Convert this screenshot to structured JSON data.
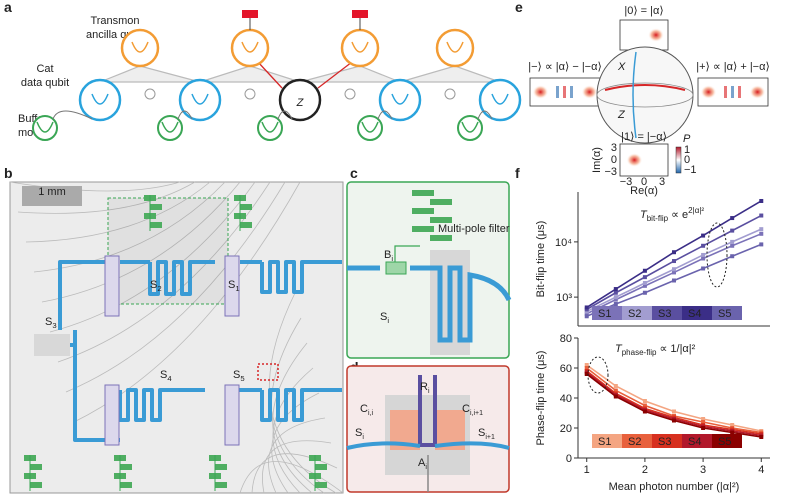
{
  "panels": {
    "a": {
      "label": "a",
      "transmon": [
        "Transmon",
        "ancilla qubit"
      ],
      "cat": [
        "Cat",
        "data qubit"
      ],
      "buffer": [
        "Buffer",
        "mode"
      ],
      "z": "Z"
    },
    "b": {
      "label": "b",
      "scale": "1 mm",
      "sites": [
        {
          "s": "S",
          "sub": "2"
        },
        {
          "s": "S",
          "sub": "1"
        },
        {
          "s": "S",
          "sub": "3"
        },
        {
          "s": "S",
          "sub": "4"
        },
        {
          "s": "S",
          "sub": "5"
        }
      ]
    },
    "c": {
      "label": "c",
      "filter": "Multi-pole filter",
      "b": {
        "s": "B",
        "sub": "i"
      },
      "s": {
        "s": "S",
        "sub": "i"
      }
    },
    "d": {
      "label": "d",
      "labels": [
        {
          "s": "R",
          "sub": "i"
        },
        {
          "s": "C",
          "sub": "i,i"
        },
        {
          "s": "C",
          "sub": "i,i+1"
        },
        {
          "s": "S",
          "sub": "i"
        },
        {
          "s": "A",
          "sub": "i"
        },
        {
          "s": "S",
          "sub": "i+1"
        }
      ]
    },
    "e": {
      "label": "e",
      "states": [
        "|0⟩ = |α⟩",
        "|−⟩ ∝ |α⟩ − |−α⟩",
        "|+⟩ ∝ |α⟩ + |−α⟩",
        "|1⟩ = |−α⟩"
      ],
      "axes": [
        "X",
        "Z"
      ],
      "ylabel": "Im(α)",
      "xlabel": "Re(α)",
      "yticks": [
        "3",
        "0",
        "−3"
      ],
      "xticks": [
        "−3",
        "0",
        "3"
      ],
      "colorbar_label": "P",
      "colorbar_ticks": [
        "1",
        "0",
        "−1"
      ]
    },
    "f": {
      "label": "f"
    }
  },
  "chart_data": [
    {
      "type": "line",
      "ylabel": "Bit-flip time (μs)",
      "x": [
        1,
        1.5,
        2,
        2.5,
        3,
        3.5,
        4
      ],
      "xlim": [
        0.85,
        4.15
      ],
      "ylim": [
        300,
        80000
      ],
      "log_y": true,
      "yticks": [
        {
          "value": 1000,
          "label": "10³"
        },
        {
          "value": 10000,
          "label": "10⁴"
        }
      ],
      "annotation": {
        "main": "T",
        "sub": "bit-flip",
        "rest": " ∝ e",
        "sup": "2|α|²"
      },
      "series": [
        {
          "name": "S1",
          "color": "#7b72b8",
          "values": [
            500,
            900,
            1600,
            2800,
            5000,
            8500,
            14000
          ]
        },
        {
          "name": "S2",
          "color": "#a29dd0",
          "values": [
            550,
            1000,
            1800,
            3200,
            5800,
            10000,
            17000
          ]
        },
        {
          "name": "S3",
          "color": "#5a4fa0",
          "values": [
            600,
            1200,
            2300,
            4500,
            8500,
            16000,
            30000
          ]
        },
        {
          "name": "S4",
          "color": "#3b2e87",
          "values": [
            650,
            1400,
            3000,
            6500,
            13000,
            27000,
            55000
          ]
        },
        {
          "name": "S5",
          "color": "#6a63ad",
          "values": [
            450,
            750,
            1200,
            2000,
            3300,
            5500,
            9000
          ]
        }
      ]
    },
    {
      "type": "line",
      "ylabel": "Phase-flip time (μs)",
      "xlabel": "Mean photon number (|α|²)",
      "x": [
        1,
        1.5,
        2,
        2.5,
        3,
        3.5,
        4
      ],
      "xlim": [
        0.85,
        4.15
      ],
      "ylim": [
        0,
        80
      ],
      "yticks": [
        0,
        20,
        40,
        60,
        80
      ],
      "xticks": [
        1,
        2,
        3,
        4
      ],
      "annotation": {
        "main": "T",
        "sub": "phase-flip",
        "rest": " ∝ 1/|α|²"
      },
      "series": [
        {
          "name": "S1",
          "color": "#f4a582",
          "values": [
            62,
            48,
            38,
            31,
            26,
            22,
            18
          ]
        },
        {
          "name": "S2",
          "color": "#e8603c",
          "values": [
            60,
            45,
            35,
            28,
            24,
            20,
            17
          ]
        },
        {
          "name": "S3",
          "color": "#d7301f",
          "values": [
            58,
            43,
            33,
            27,
            22,
            19,
            16
          ]
        },
        {
          "name": "S4",
          "color": "#b2182b",
          "values": [
            57,
            42,
            32,
            26,
            21,
            18,
            15
          ]
        },
        {
          "name": "S5",
          "color": "#8b0000",
          "values": [
            56,
            41,
            31,
            25,
            20,
            17,
            14
          ]
        }
      ]
    }
  ]
}
